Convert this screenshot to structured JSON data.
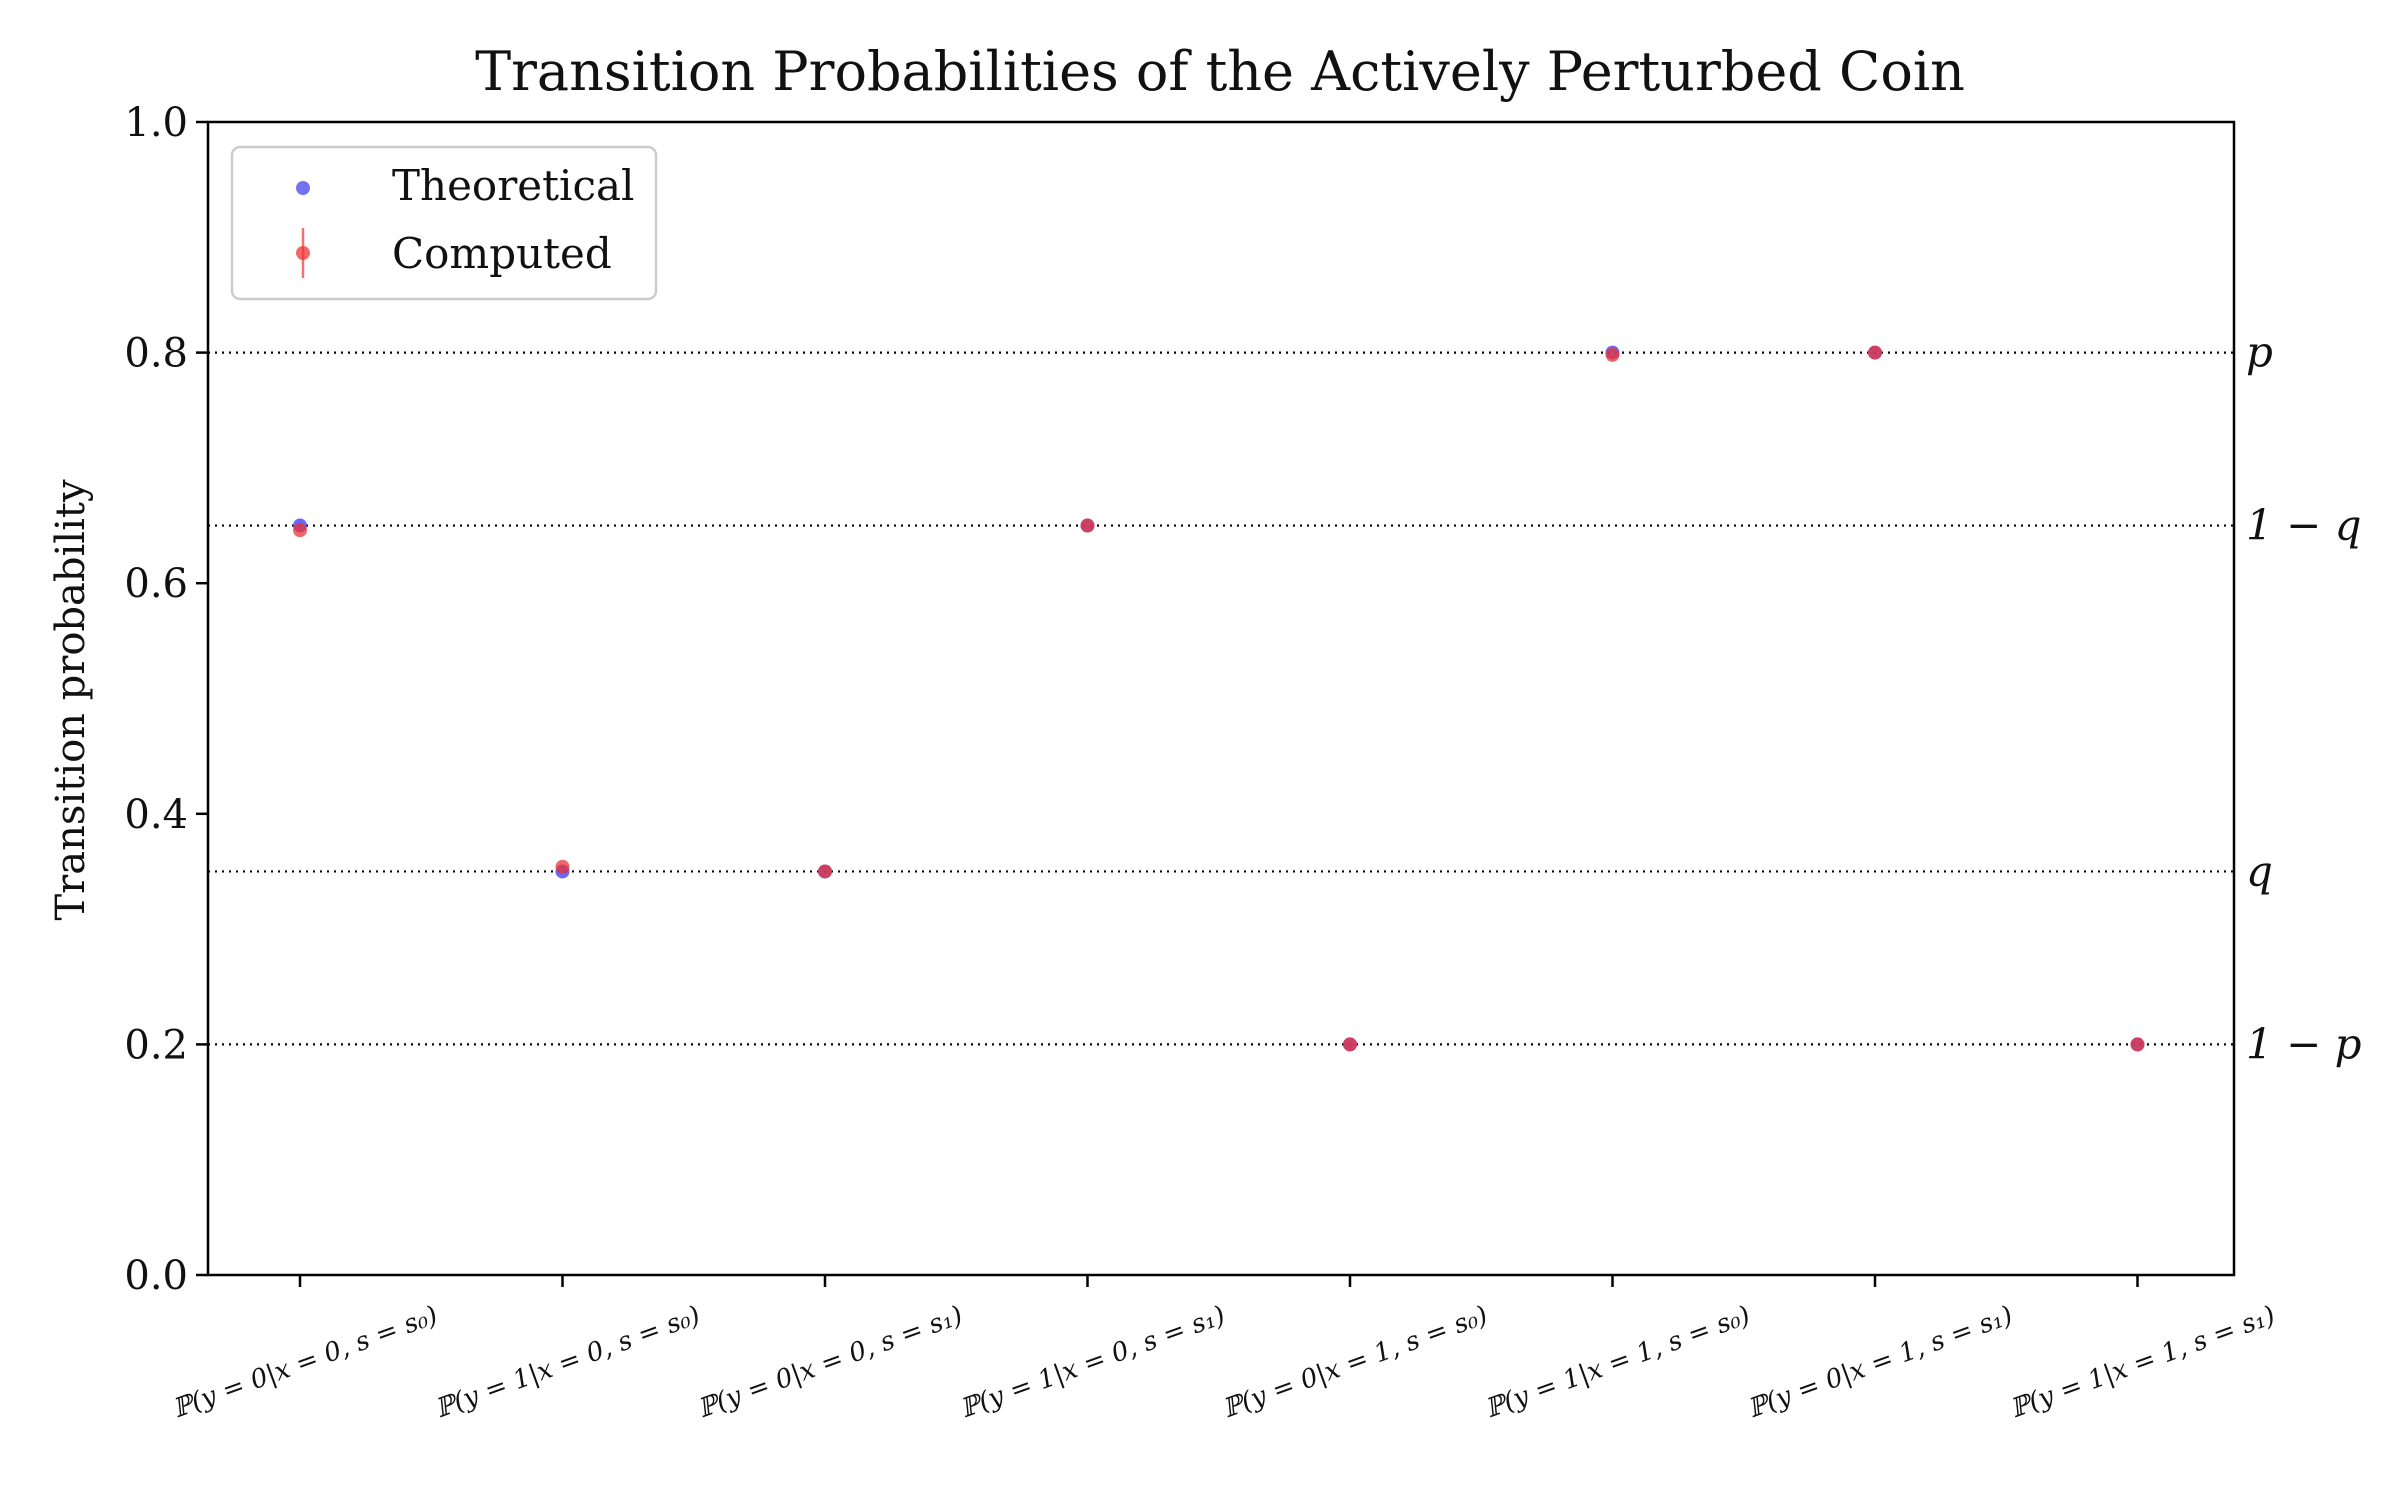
{
  "chart_data": {
    "type": "scatter",
    "title": "Transition Probabilities of the Actively Perturbed Coin",
    "xlabel": "",
    "ylabel": "Transition probability",
    "ylim": [
      0.0,
      1.0
    ],
    "yticks": [
      0.0,
      0.2,
      0.4,
      0.6,
      0.8,
      1.0
    ],
    "ytick_labels": [
      "0.0",
      "0.2",
      "0.4",
      "0.6",
      "0.8",
      "1.0"
    ],
    "categories": [
      "ℙ(y = 0|x = 0, s = s₀)",
      "ℙ(y = 1|x = 0, s = s₀)",
      "ℙ(y = 0|x = 0, s = s₁)",
      "ℙ(y = 1|x = 0, s = s₁)",
      "ℙ(y = 0|x = 1, s = s₀)",
      "ℙ(y = 1|x = 1, s = s₀)",
      "ℙ(y = 0|x = 1, s = s₁)",
      "ℙ(y = 1|x = 1, s = s₁)"
    ],
    "series": [
      {
        "name": "Theoretical",
        "color": "#4444ee",
        "values": [
          0.65,
          0.35,
          0.35,
          0.65,
          0.2,
          0.8,
          0.8,
          0.2
        ]
      },
      {
        "name": "Computed",
        "color": "#ee3333",
        "values": [
          0.646,
          0.354,
          0.35,
          0.65,
          0.2,
          0.798,
          0.8,
          0.2
        ]
      }
    ],
    "reference_lines": [
      {
        "value": 0.8,
        "label": "p"
      },
      {
        "value": 0.65,
        "label": "1 − q"
      },
      {
        "value": 0.35,
        "label": "q"
      },
      {
        "value": 0.2,
        "label": "1 − p"
      }
    ],
    "legend_position": "upper-left",
    "grid": false
  }
}
